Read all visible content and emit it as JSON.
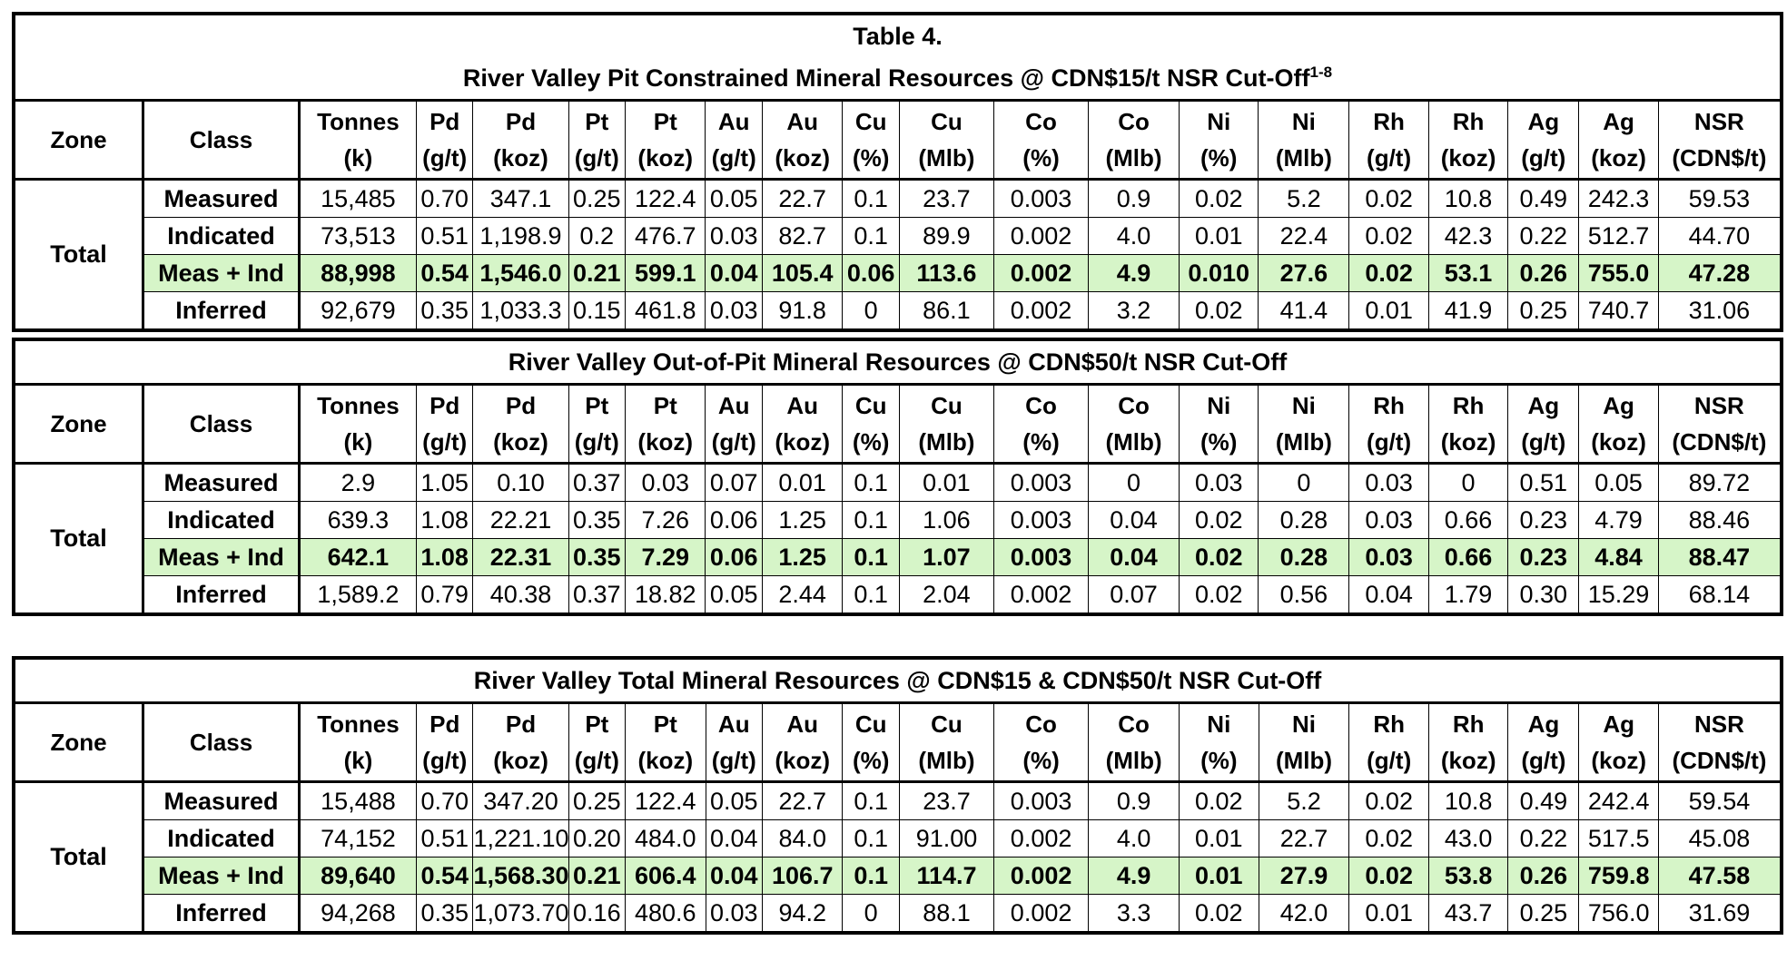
{
  "tables": [
    {
      "title_lines": [
        "Table 4.",
        "River Valley Pit Constrained Mineral Resources @ CDN$15/t NSR Cut-Off"
      ],
      "title_sup": "1-8",
      "zone": "Total",
      "headers": [
        [
          "Zone",
          ""
        ],
        [
          "Class",
          ""
        ],
        [
          "Tonnes",
          "(k)"
        ],
        [
          "Pd",
          "(g/t)"
        ],
        [
          "Pd",
          "(koz)"
        ],
        [
          "Pt",
          "(g/t)"
        ],
        [
          "Pt",
          "(koz)"
        ],
        [
          "Au",
          "(g/t)"
        ],
        [
          "Au",
          "(koz)"
        ],
        [
          "Cu",
          "(%)"
        ],
        [
          "Cu",
          "(Mlb)"
        ],
        [
          "Co",
          "(%)"
        ],
        [
          "Co",
          "(Mlb)"
        ],
        [
          "Ni",
          "(%)"
        ],
        [
          "Ni",
          "(Mlb)"
        ],
        [
          "Rh",
          "(g/t)"
        ],
        [
          "Rh",
          "(koz)"
        ],
        [
          "Ag",
          "(g/t)"
        ],
        [
          "Ag",
          "(koz)"
        ],
        [
          "NSR",
          "(CDN$/t)"
        ]
      ],
      "rows": [
        [
          "Measured",
          "15,485",
          "0.70",
          "347.1",
          "0.25",
          "122.4",
          "0.05",
          "22.7",
          "0.1",
          "23.7",
          "0.003",
          "0.9",
          "0.02",
          "5.2",
          "0.02",
          "10.8",
          "0.49",
          "242.3",
          "59.53"
        ],
        [
          "Indicated",
          "73,513",
          "0.51",
          "1,198.9",
          "0.2",
          "476.7",
          "0.03",
          "82.7",
          "0.1",
          "89.9",
          "0.002",
          "4.0",
          "0.01",
          "22.4",
          "0.02",
          "42.3",
          "0.22",
          "512.7",
          "44.70"
        ],
        [
          "Meas + Ind",
          "88,998",
          "0.54",
          "1,546.0",
          "0.21",
          "599.1",
          "0.04",
          "105.4",
          "0.06",
          "113.6",
          "0.002",
          "4.9",
          "0.010",
          "27.6",
          "0.02",
          "53.1",
          "0.26",
          "755.0",
          "47.28"
        ],
        [
          "Inferred",
          "92,679",
          "0.35",
          "1,033.3",
          "0.15",
          "461.8",
          "0.03",
          "91.8",
          "0",
          "86.1",
          "0.002",
          "3.2",
          "0.02",
          "41.4",
          "0.01",
          "41.9",
          "0.25",
          "740.7",
          "31.06"
        ]
      ]
    },
    {
      "title_lines": [
        "River Valley Out-of-Pit Mineral Resources @ CDN$50/t NSR Cut-Off"
      ],
      "title_sup": "",
      "zone": "Total",
      "headers": [
        [
          "Zone",
          ""
        ],
        [
          "Class",
          ""
        ],
        [
          "Tonnes",
          "(k)"
        ],
        [
          "Pd",
          "(g/t)"
        ],
        [
          "Pd",
          "(koz)"
        ],
        [
          "Pt",
          "(g/t)"
        ],
        [
          "Pt",
          "(koz)"
        ],
        [
          "Au",
          "(g/t)"
        ],
        [
          "Au",
          "(koz)"
        ],
        [
          "Cu",
          "(%)"
        ],
        [
          "Cu",
          "(Mlb)"
        ],
        [
          "Co",
          "(%)"
        ],
        [
          "Co",
          "(Mlb)"
        ],
        [
          "Ni",
          "(%)"
        ],
        [
          "Ni",
          "(Mlb)"
        ],
        [
          "Rh",
          "(g/t)"
        ],
        [
          "Rh",
          "(koz)"
        ],
        [
          "Ag",
          "(g/t)"
        ],
        [
          "Ag",
          "(koz)"
        ],
        [
          "NSR",
          "(CDN$/t)"
        ]
      ],
      "rows": [
        [
          "Measured",
          "2.9",
          "1.05",
          "0.10",
          "0.37",
          "0.03",
          "0.07",
          "0.01",
          "0.1",
          "0.01",
          "0.003",
          "0",
          "0.03",
          "0",
          "0.03",
          "0",
          "0.51",
          "0.05",
          "89.72"
        ],
        [
          "Indicated",
          "639.3",
          "1.08",
          "22.21",
          "0.35",
          "7.26",
          "0.06",
          "1.25",
          "0.1",
          "1.06",
          "0.003",
          "0.04",
          "0.02",
          "0.28",
          "0.03",
          "0.66",
          "0.23",
          "4.79",
          "88.46"
        ],
        [
          "Meas + Ind",
          "642.1",
          "1.08",
          "22.31",
          "0.35",
          "7.29",
          "0.06",
          "1.25",
          "0.1",
          "1.07",
          "0.003",
          "0.04",
          "0.02",
          "0.28",
          "0.03",
          "0.66",
          "0.23",
          "4.84",
          "88.47"
        ],
        [
          "Inferred",
          "1,589.2",
          "0.79",
          "40.38",
          "0.37",
          "18.82",
          "0.05",
          "2.44",
          "0.1",
          "2.04",
          "0.002",
          "0.07",
          "0.02",
          "0.56",
          "0.04",
          "1.79",
          "0.30",
          "15.29",
          "68.14"
        ]
      ]
    },
    {
      "title_lines": [
        "River Valley Total Mineral Resources @ CDN$15 & CDN$50/t NSR Cut-Off"
      ],
      "title_sup": "",
      "zone": "Total",
      "headers": [
        [
          "Zone",
          ""
        ],
        [
          "Class",
          ""
        ],
        [
          "Tonnes",
          "(k)"
        ],
        [
          "Pd",
          "(g/t)"
        ],
        [
          "Pd",
          "(koz)"
        ],
        [
          "Pt",
          "(g/t)"
        ],
        [
          "Pt",
          "(koz)"
        ],
        [
          "Au",
          "(g/t)"
        ],
        [
          "Au",
          "(koz)"
        ],
        [
          "Cu",
          "(%)"
        ],
        [
          "Cu",
          "(Mlb)"
        ],
        [
          "Co",
          "(%)"
        ],
        [
          "Co",
          "(Mlb)"
        ],
        [
          "Ni",
          "(%)"
        ],
        [
          "Ni",
          "(Mlb)"
        ],
        [
          "Rh",
          "(g/t)"
        ],
        [
          "Rh",
          "(koz)"
        ],
        [
          "Ag",
          "(g/t)"
        ],
        [
          "Ag",
          "(koz)"
        ],
        [
          "NSR",
          "(CDN$/t)"
        ]
      ],
      "rows": [
        [
          "Measured",
          "15,488",
          "0.70",
          "347.20",
          "0.25",
          "122.4",
          "0.05",
          "22.7",
          "0.1",
          "23.7",
          "0.003",
          "0.9",
          "0.02",
          "5.2",
          "0.02",
          "10.8",
          "0.49",
          "242.4",
          "59.54"
        ],
        [
          "Indicated",
          "74,152",
          "0.51",
          "1,221.10",
          "0.20",
          "484.0",
          "0.04",
          "84.0",
          "0.1",
          "91.00",
          "0.002",
          "4.0",
          "0.01",
          "22.7",
          "0.02",
          "43.0",
          "0.22",
          "517.5",
          "45.08"
        ],
        [
          "Meas + Ind",
          "89,640",
          "0.54",
          "1,568.30",
          "0.21",
          "606.4",
          "0.04",
          "106.7",
          "0.1",
          "114.7",
          "0.002",
          "4.9",
          "0.01",
          "27.9",
          "0.02",
          "53.8",
          "0.26",
          "759.8",
          "47.58"
        ],
        [
          "Inferred",
          "94,268",
          "0.35",
          "1,073.70",
          "0.16",
          "480.6",
          "0.03",
          "94.2",
          "0",
          "88.1",
          "0.002",
          "3.3",
          "0.02",
          "42.0",
          "0.01",
          "43.7",
          "0.25",
          "756.0",
          "31.69"
        ]
      ]
    }
  ]
}
